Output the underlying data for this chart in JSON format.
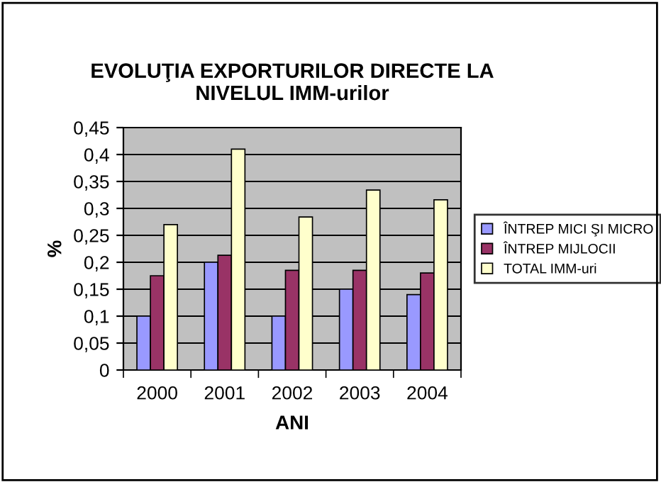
{
  "chart_data": {
    "type": "bar",
    "title": "EVOLUŢIA EXPORTURILOR DIRECTE LA\nNIVELUL IMM-urilor",
    "xlabel": "ANI",
    "ylabel": "%",
    "categories": [
      "2000",
      "2001",
      "2002",
      "2003",
      "2004"
    ],
    "series": [
      {
        "name": "ÎNTREP MICI ŞI MICRO",
        "color": "#9999ff",
        "values": [
          0.1,
          0.2,
          0.1,
          0.15,
          0.14
        ]
      },
      {
        "name": "ÎNTREP MIJLOCII",
        "color": "#993366",
        "values": [
          0.175,
          0.213,
          0.185,
          0.185,
          0.18
        ]
      },
      {
        "name": "TOTAL IMM-uri",
        "color": "#ffffcc",
        "values": [
          0.27,
          0.41,
          0.284,
          0.334,
          0.316
        ]
      }
    ],
    "ylim": [
      0,
      0.45
    ],
    "yticks": [
      {
        "value": 0,
        "label": "0"
      },
      {
        "value": 0.05,
        "label": "0,05"
      },
      {
        "value": 0.1,
        "label": "0,1"
      },
      {
        "value": 0.15,
        "label": "0,15"
      },
      {
        "value": 0.2,
        "label": "0,2"
      },
      {
        "value": 0.25,
        "label": "0,25"
      },
      {
        "value": 0.3,
        "label": "0,3"
      },
      {
        "value": 0.35,
        "label": "0,35"
      },
      {
        "value": 0.4,
        "label": "0,4"
      },
      {
        "value": 0.45,
        "label": "0,45"
      }
    ],
    "grid": "y",
    "legend": "right"
  }
}
